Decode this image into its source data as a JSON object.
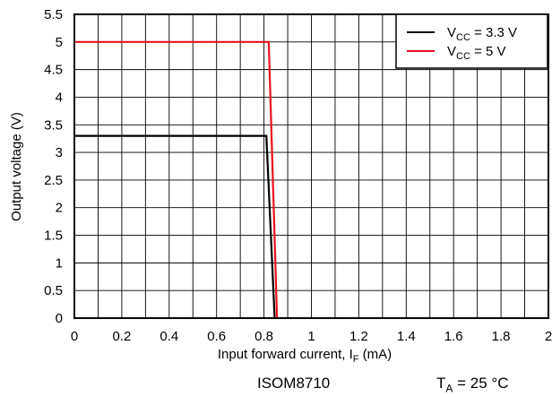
{
  "chart_data": {
    "type": "line",
    "xlabel": {
      "main": "Input forward current, I",
      "sub": "F",
      "tail": " (mA)"
    },
    "ylabel": "Output voltage (V)",
    "xlim": [
      0,
      2
    ],
    "ylim": [
      0,
      5.5
    ],
    "x_ticks": [
      "0",
      "0.2",
      "0.4",
      "0.6",
      "0.8",
      "1",
      "1.2",
      "1.4",
      "1.6",
      "1.8",
      "2"
    ],
    "y_ticks": [
      "0",
      "0.5",
      "1",
      "1.5",
      "2",
      "2.5",
      "3",
      "3.5",
      "4",
      "4.5",
      "5",
      "5.5"
    ],
    "x_minor_grid_step": 0.1,
    "y_grid_step": 0.5,
    "grid": true,
    "legend_position": "top-right",
    "series": [
      {
        "name": {
          "main": "V",
          "sub": "CC",
          "tail": " = 3.3 V"
        },
        "color": "#000000",
        "x": [
          0,
          0.81,
          0.845
        ],
        "y": [
          3.3,
          3.3,
          0
        ]
      },
      {
        "name": {
          "main": "V",
          "sub": "CC",
          "tail": " = 5 V"
        },
        "color": "#e8121c",
        "x": [
          0,
          0.82,
          0.855
        ],
        "y": [
          5,
          5,
          0
        ]
      }
    ]
  },
  "footer": {
    "device": "ISOM8710",
    "temperature": {
      "main": "T",
      "sub": "A",
      "tail": " = 25 °C"
    }
  }
}
